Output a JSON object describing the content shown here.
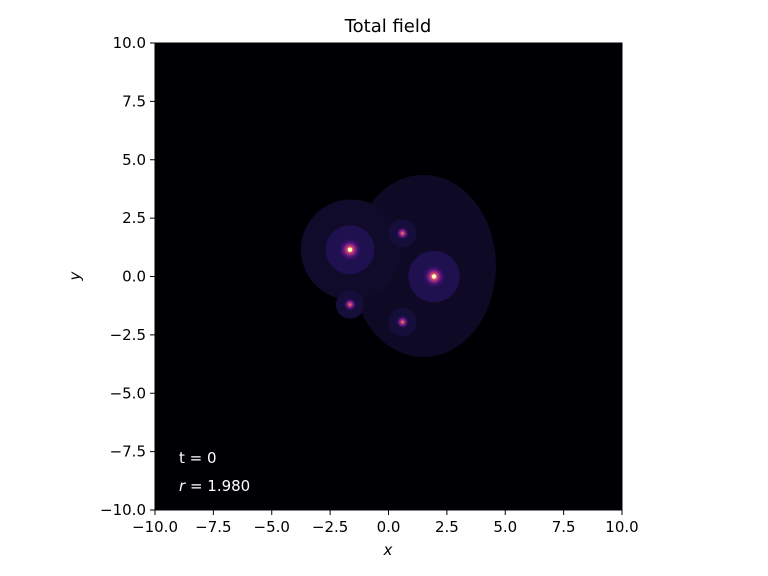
{
  "chart_data": {
    "type": "heatmap",
    "title": "Total field",
    "xlabel": "x",
    "ylabel": "y",
    "xlim": [
      -10.0,
      10.0
    ],
    "ylim": [
      -10.0,
      10.0
    ],
    "xticks": [
      "−10.0",
      "−7.5",
      "−5.0",
      "−2.5",
      "0.0",
      "2.5",
      "5.0",
      "7.5",
      "10.0"
    ],
    "yticks": [
      "10.0",
      "7.5",
      "5.0",
      "2.5",
      "0.0",
      "−2.5",
      "−5.0",
      "−7.5",
      "−10.0"
    ],
    "tick_values_x": [
      -10,
      -7.5,
      -5,
      -2.5,
      0,
      2.5,
      5,
      7.5,
      10
    ],
    "tick_values_y": [
      10,
      7.5,
      5,
      2.5,
      0,
      -2.5,
      -5,
      -7.5,
      -10
    ],
    "grid": false,
    "colormap": "magma",
    "background_color": "#000004",
    "sources": [
      {
        "x": 1.95,
        "y": 0.0,
        "intensity": 1.0
      },
      {
        "x": -1.65,
        "y": 1.15,
        "intensity": 0.85
      },
      {
        "x": -1.65,
        "y": -1.2,
        "intensity": 0.35
      },
      {
        "x": 0.6,
        "y": 1.85,
        "intensity": 0.3
      },
      {
        "x": 0.6,
        "y": -1.95,
        "intensity": 0.3
      }
    ],
    "annotations": {
      "time_text": "t = 0",
      "r_symbol": "r",
      "r_text": " = 1.980"
    }
  }
}
